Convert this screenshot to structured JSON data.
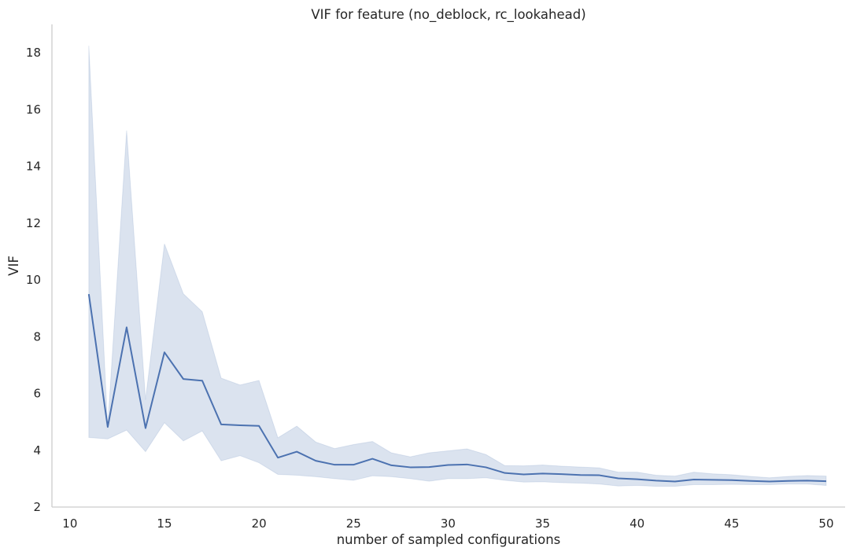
{
  "chart_data": {
    "type": "line",
    "title": "VIF for feature (no_deblock, rc_lookahead)",
    "xlabel": "number of sampled configurations",
    "ylabel": "VIF",
    "xlim": [
      9.05,
      51.0
    ],
    "ylim": [
      2.0,
      19.0
    ],
    "xticks": [
      10,
      15,
      20,
      25,
      30,
      35,
      40,
      45,
      50
    ],
    "yticks": [
      2,
      4,
      6,
      8,
      10,
      12,
      14,
      16,
      18
    ],
    "grid": false,
    "colors": {
      "line": "#4c72b0",
      "band": "#4c72b0"
    },
    "series": [
      {
        "x": [
          11,
          12,
          13,
          14,
          15,
          16,
          17,
          18,
          19,
          20,
          21,
          22,
          23,
          24,
          25,
          26,
          27,
          28,
          29,
          30,
          31,
          32,
          33,
          34,
          35,
          36,
          37,
          38,
          39,
          40,
          41,
          42,
          43,
          44,
          45,
          46,
          47,
          48,
          49,
          50
        ],
        "y": [
          9.5,
          4.82,
          8.33,
          4.78,
          7.45,
          6.51,
          6.45,
          4.91,
          4.88,
          4.86,
          3.74,
          3.95,
          3.63,
          3.49,
          3.49,
          3.7,
          3.47,
          3.4,
          3.41,
          3.48,
          3.5,
          3.4,
          3.2,
          3.15,
          3.18,
          3.16,
          3.13,
          3.12,
          3.01,
          2.98,
          2.93,
          2.9,
          2.97,
          2.96,
          2.95,
          2.92,
          2.9,
          2.92,
          2.93,
          2.91
        ],
        "lower": [
          4.45,
          4.4,
          4.71,
          3.95,
          4.97,
          4.33,
          4.68,
          3.63,
          3.81,
          3.56,
          3.15,
          3.12,
          3.07,
          3.0,
          2.94,
          3.1,
          3.07,
          3.0,
          2.91,
          3.0,
          3.0,
          3.03,
          2.94,
          2.88,
          2.89,
          2.86,
          2.84,
          2.81,
          2.74,
          2.76,
          2.73,
          2.73,
          2.79,
          2.79,
          2.8,
          2.79,
          2.79,
          2.81,
          2.81,
          2.76
        ],
        "upper": [
          18.25,
          4.81,
          15.26,
          5.78,
          11.27,
          9.51,
          8.88,
          6.54,
          6.3,
          6.46,
          4.44,
          4.85,
          4.29,
          4.06,
          4.2,
          4.31,
          3.91,
          3.77,
          3.91,
          3.98,
          4.05,
          3.85,
          3.46,
          3.45,
          3.48,
          3.44,
          3.41,
          3.38,
          3.23,
          3.23,
          3.12,
          3.09,
          3.23,
          3.17,
          3.14,
          3.08,
          3.03,
          3.08,
          3.11,
          3.09
        ]
      }
    ]
  }
}
